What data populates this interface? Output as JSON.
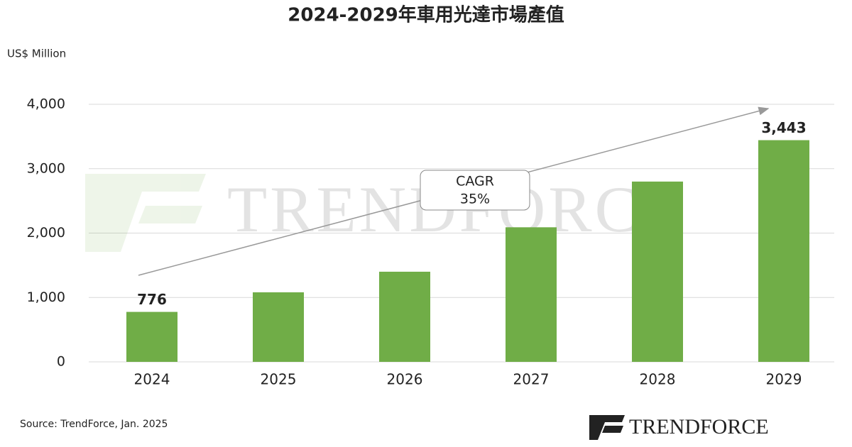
{
  "chart_data": {
    "type": "bar",
    "title": "2024-2029年車用光達市場產值",
    "y_label": "US$ Million",
    "categories": [
      "2024",
      "2025",
      "2026",
      "2027",
      "2028",
      "2029"
    ],
    "values": [
      776,
      1080,
      1400,
      2090,
      2800,
      3443
    ],
    "value_labels": [
      "776",
      null,
      null,
      null,
      null,
      "3,443"
    ],
    "color": "#70ad47",
    "ylim": [
      0,
      4000
    ],
    "yticks": [
      0,
      {
        "value": 1000,
        "label": "1,000"
      },
      {
        "value": 2000,
        "label": "2,000"
      },
      {
        "value": 3000,
        "label": "3,000"
      },
      {
        "value": 4000,
        "label": "4,000"
      }
    ],
    "grid": true,
    "annotation": [
      "CAGR",
      "35%"
    ],
    "source": "Source: TrendForce, Jan. 2025",
    "logo": "TRENDFORCE"
  }
}
